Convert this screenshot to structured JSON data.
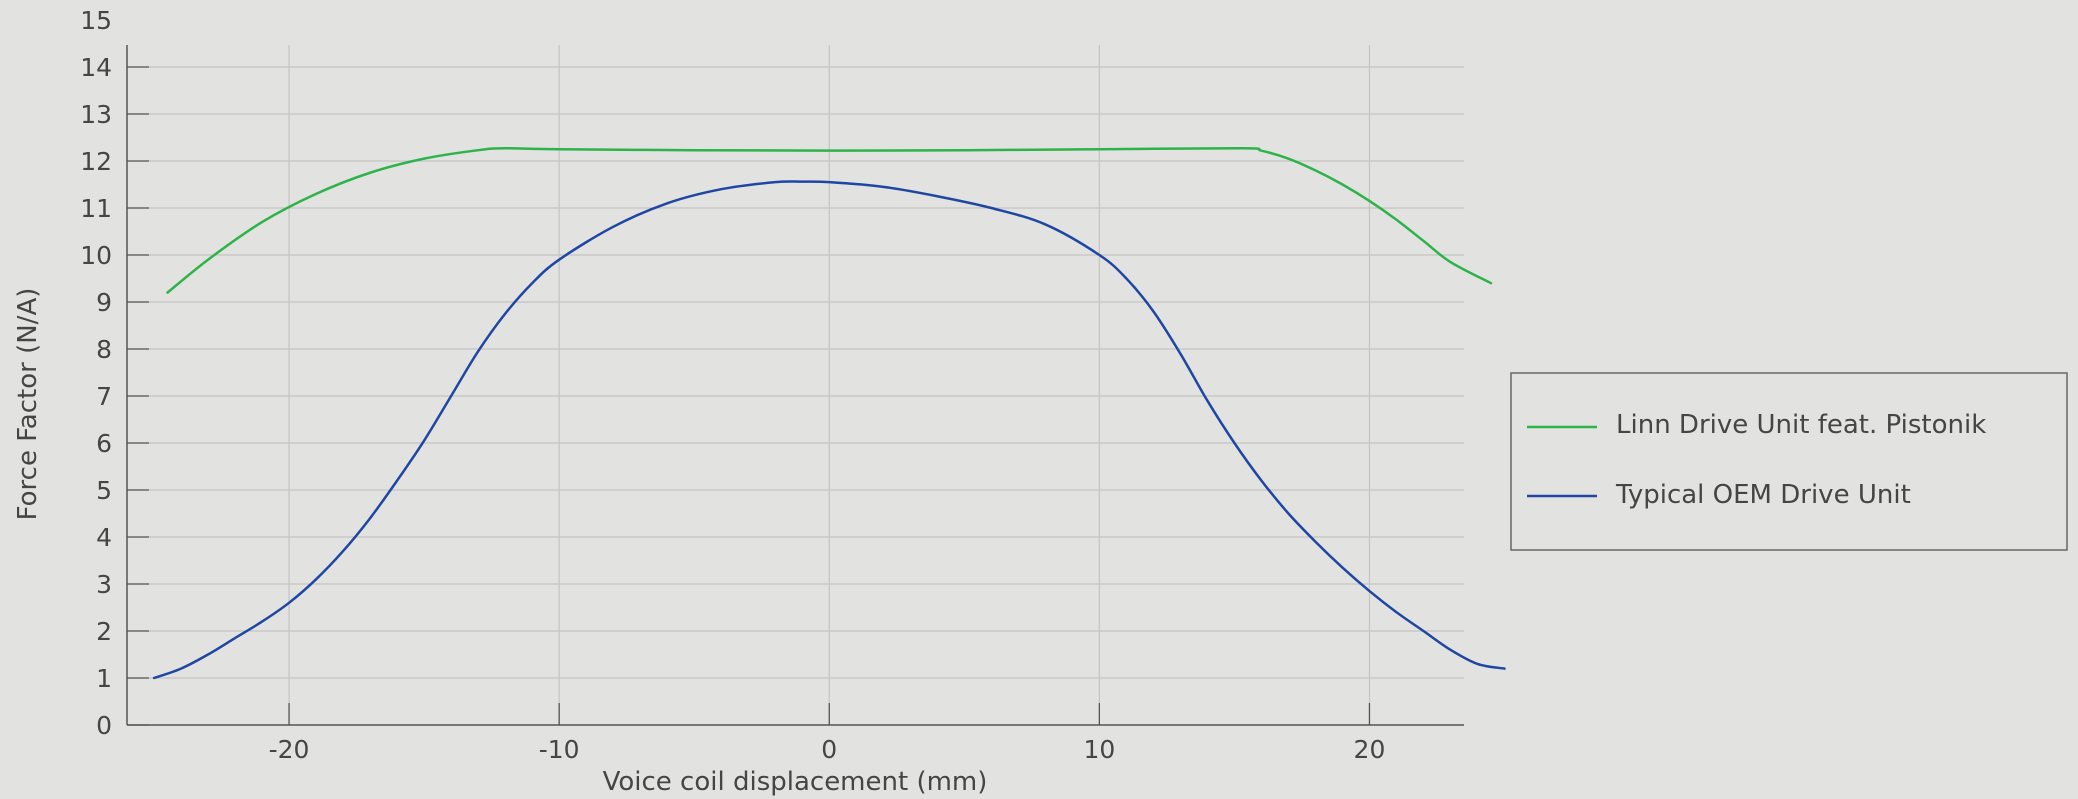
{
  "chart_data": {
    "type": "line",
    "title": "",
    "xlabel": "Voice coil displacement (mm)",
    "ylabel": "Force Factor (N/A)",
    "xlim": [
      -26,
      23.5
    ],
    "ylim": [
      0,
      15
    ],
    "x_ticks": [
      -20,
      -10,
      0,
      10,
      20
    ],
    "x_tick_labels": [
      "-20",
      "-10",
      "0",
      "10",
      "20"
    ],
    "y_ticks": [
      0,
      1,
      2,
      3,
      4,
      5,
      6,
      7,
      8,
      9,
      10,
      11,
      12,
      13,
      14,
      15
    ],
    "y_tick_labels": [
      "0",
      "1",
      "2",
      "3",
      "4",
      "5",
      "6",
      "7",
      "8",
      "9",
      "10",
      "11",
      "12",
      "13",
      "14",
      "15"
    ],
    "grid": true,
    "legend_position": "right",
    "series": [
      {
        "name": "Linn Drive Unit feat. Pistonik",
        "color": "#2eb34a",
        "points": [
          [
            -24.5,
            9.2
          ],
          [
            -23,
            9.9
          ],
          [
            -21,
            10.7
          ],
          [
            -19,
            11.3
          ],
          [
            -17,
            11.75
          ],
          [
            -15,
            12.05
          ],
          [
            -13,
            12.23
          ],
          [
            -12,
            12.27
          ],
          [
            -10,
            12.25
          ],
          [
            -5,
            12.23
          ],
          [
            0,
            12.22
          ],
          [
            5,
            12.23
          ],
          [
            10,
            12.25
          ],
          [
            15.3,
            12.27
          ],
          [
            16,
            12.22
          ],
          [
            17,
            12.05
          ],
          [
            18,
            11.8
          ],
          [
            19,
            11.5
          ],
          [
            20,
            11.15
          ],
          [
            21,
            10.75
          ],
          [
            22,
            10.3
          ],
          [
            23,
            9.85
          ],
          [
            24.5,
            9.4
          ]
        ]
      },
      {
        "name": "Typical OEM Drive Unit",
        "color": "#1f46a3",
        "points": [
          [
            -25,
            1.0
          ],
          [
            -24,
            1.2
          ],
          [
            -23,
            1.5
          ],
          [
            -22,
            1.85
          ],
          [
            -21,
            2.2
          ],
          [
            -20,
            2.6
          ],
          [
            -19,
            3.1
          ],
          [
            -18,
            3.7
          ],
          [
            -17,
            4.4
          ],
          [
            -16,
            5.2
          ],
          [
            -15,
            6.05
          ],
          [
            -14,
            7.0
          ],
          [
            -13,
            7.95
          ],
          [
            -12,
            8.75
          ],
          [
            -11,
            9.4
          ],
          [
            -10,
            9.9
          ],
          [
            -8,
            10.6
          ],
          [
            -6,
            11.1
          ],
          [
            -4,
            11.4
          ],
          [
            -2,
            11.55
          ],
          [
            -1,
            11.56
          ],
          [
            0,
            11.55
          ],
          [
            2,
            11.45
          ],
          [
            4,
            11.25
          ],
          [
            6,
            11.0
          ],
          [
            8,
            10.65
          ],
          [
            10,
            10.0
          ],
          [
            11,
            9.5
          ],
          [
            12,
            8.8
          ],
          [
            13,
            7.9
          ],
          [
            14,
            6.9
          ],
          [
            15,
            6.0
          ],
          [
            16,
            5.2
          ],
          [
            17,
            4.5
          ],
          [
            18,
            3.9
          ],
          [
            19,
            3.35
          ],
          [
            20,
            2.85
          ],
          [
            21,
            2.4
          ],
          [
            22,
            2.0
          ],
          [
            23,
            1.6
          ],
          [
            24,
            1.3
          ],
          [
            25,
            1.2
          ]
        ]
      }
    ]
  }
}
